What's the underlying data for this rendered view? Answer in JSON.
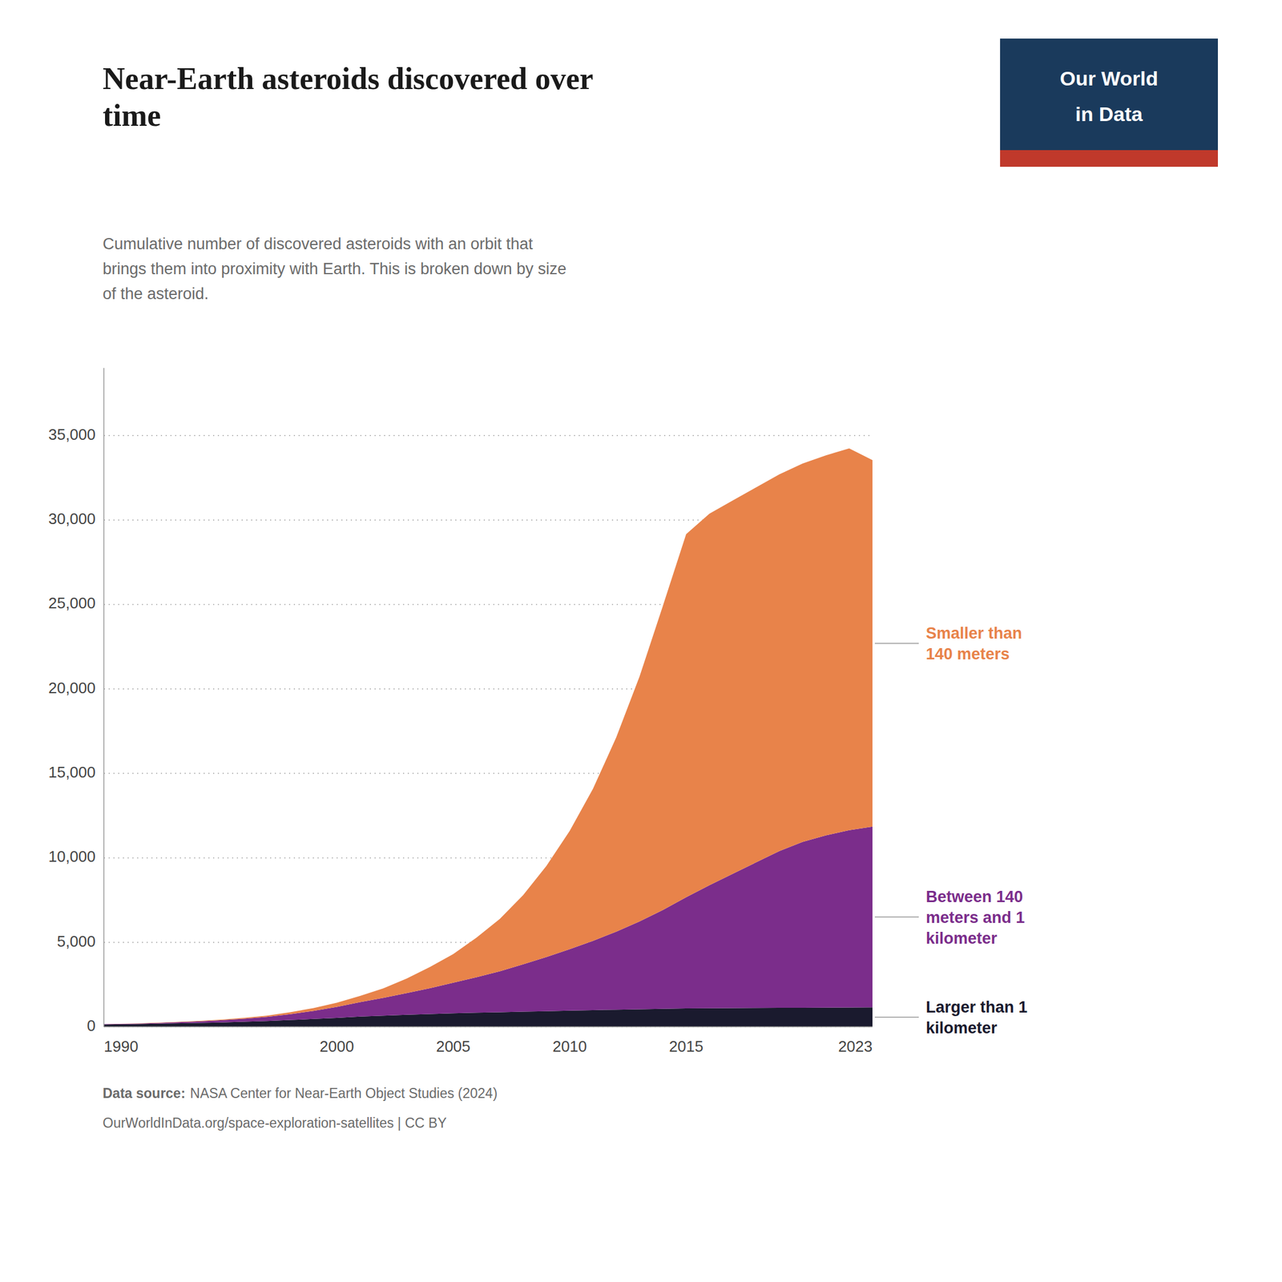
{
  "chart_data": {
    "type": "area",
    "stacked": true,
    "title": "Near-Earth asteroids discovered over\ntime",
    "subtitle": "Cumulative number of discovered asteroids with an orbit that\nbrings them into proximity with Earth. This is broken down by size\nof the asteroid.",
    "source_label": "Data source:",
    "source": "NASA Center for Near-Earth Object Studies (2024)",
    "source_url": "OurWorldInData.org/space-exploration-satellites | CC BY",
    "logo_text": [
      "Our World",
      "in Data"
    ],
    "x": [
      1990,
      1991,
      1992,
      1993,
      1994,
      1995,
      1996,
      1997,
      1998,
      1999,
      2000,
      2001,
      2002,
      2003,
      2004,
      2005,
      2006,
      2007,
      2008,
      2009,
      2010,
      2011,
      2012,
      2013,
      2014,
      2015,
      2016,
      2017,
      2018,
      2019,
      2020,
      2021,
      2022,
      2023
    ],
    "series": [
      {
        "name": "Larger than 1\nkilometer",
        "color": "#1a1a2e",
        "values": [
          134,
          150,
          172,
          201,
          224,
          256,
          298,
          342,
          400,
          462,
          529,
          604,
          659,
          714,
          756,
          796,
          833,
          862,
          894,
          926,
          956,
          986,
          1013,
          1040,
          1064,
          1086,
          1097,
          1106,
          1112,
          1120,
          1125,
          1130,
          1140,
          1148
        ]
      },
      {
        "name": "Between 140\nmeters and 1\nkilometer",
        "color": "#7b2d8b",
        "values": [
          20,
          28,
          40,
          60,
          90,
          130,
          180,
          250,
          350,
          480,
          650,
          850,
          1050,
          1280,
          1530,
          1810,
          2100,
          2420,
          2800,
          3200,
          3640,
          4100,
          4620,
          5200,
          5850,
          6580,
          7280,
          7950,
          8620,
          9280,
          9820,
          10200,
          10500,
          10700
        ]
      },
      {
        "name": "Smaller than\n140 meters",
        "color": "#e8834a",
        "values": [
          5,
          8,
          12,
          18,
          25,
          35,
          50,
          70,
          110,
          165,
          240,
          370,
          570,
          860,
          1250,
          1700,
          2350,
          3100,
          4100,
          5400,
          7000,
          9000,
          11500,
          14500,
          18000,
          21500,
          22000,
          22100,
          22200,
          22300,
          22400,
          22500,
          22600,
          21700
        ]
      }
    ],
    "xlim": [
      1990,
      2023
    ],
    "xticks": [
      1990,
      2000,
      2005,
      2010,
      2015,
      2023
    ],
    "ylim": [
      0,
      39000
    ],
    "yticks": [
      0,
      {
        "value": 5000,
        "label": "5,000"
      },
      {
        "value": 10000,
        "label": "10,000"
      },
      {
        "value": 15000,
        "label": "15,000"
      },
      {
        "value": 20000,
        "label": "20,000"
      },
      {
        "value": 25000,
        "label": "25,000"
      },
      {
        "value": 30000,
        "label": "30,000"
      },
      {
        "value": 35000,
        "label": "35,000"
      }
    ],
    "grid": true
  }
}
